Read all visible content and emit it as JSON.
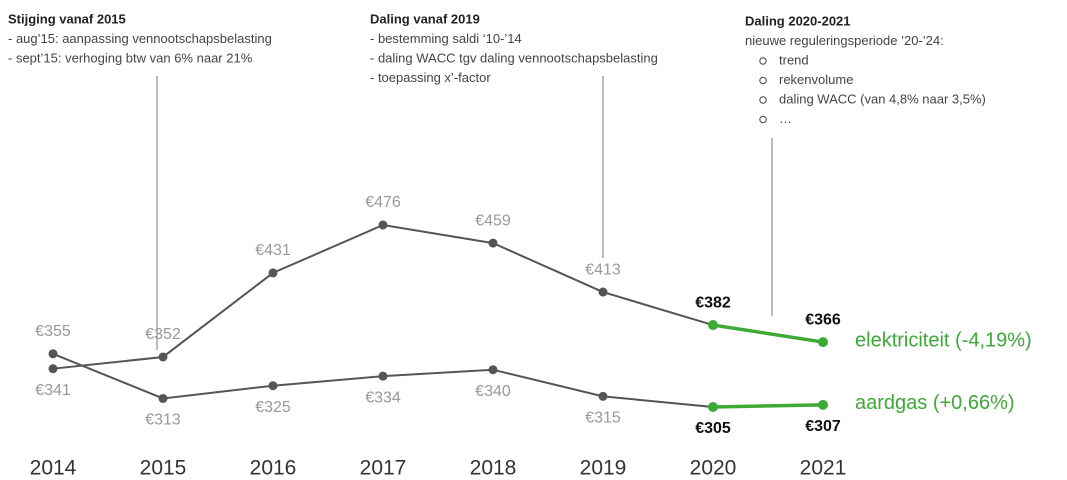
{
  "chart_data": {
    "type": "line",
    "categories": [
      "2014",
      "2015",
      "2016",
      "2017",
      "2018",
      "2019",
      "2020",
      "2021"
    ],
    "series": [
      {
        "name": "elektriciteit (-4,19%)",
        "color": "#555555",
        "highlight_color": "#3daa35",
        "values": [
          341,
          352,
          431,
          476,
          459,
          413,
          382,
          366
        ],
        "value_labels": [
          "€341",
          "€352",
          "€431",
          "€476",
          "€459",
          "€413",
          "€382",
          "€366"
        ]
      },
      {
        "name": "aardgas (+0,66%)",
        "color": "#555555",
        "highlight_color": "#3daa35",
        "values": [
          355,
          313,
          325,
          334,
          340,
          315,
          305,
          307
        ],
        "value_labels": [
          "€355",
          "€313",
          "€325",
          "€334",
          "€340",
          "€315",
          "€305",
          "€307"
        ]
      }
    ],
    "annotations": [
      {
        "title": "Stijging vanaf 2015",
        "lines": [
          "- aug’15: aanpassing vennootschapsbelasting",
          "- sept’15: verhoging btw van 6% naar 21%"
        ]
      },
      {
        "title": "Daling vanaf 2019",
        "lines": [
          "- bestemming saldi ‘10-’14",
          "- daling WACC tgv daling vennootschapsbelasting",
          "- toepassing x’-factor"
        ]
      },
      {
        "title": "Daling 2020-2021",
        "lines": [
          "nieuwe reguleringsperiode ’20-’24:"
        ],
        "items": [
          "trend",
          "rekenvolume",
          "daling WACC  (van 4,8% naar 3,5%)",
          "…"
        ]
      }
    ]
  }
}
